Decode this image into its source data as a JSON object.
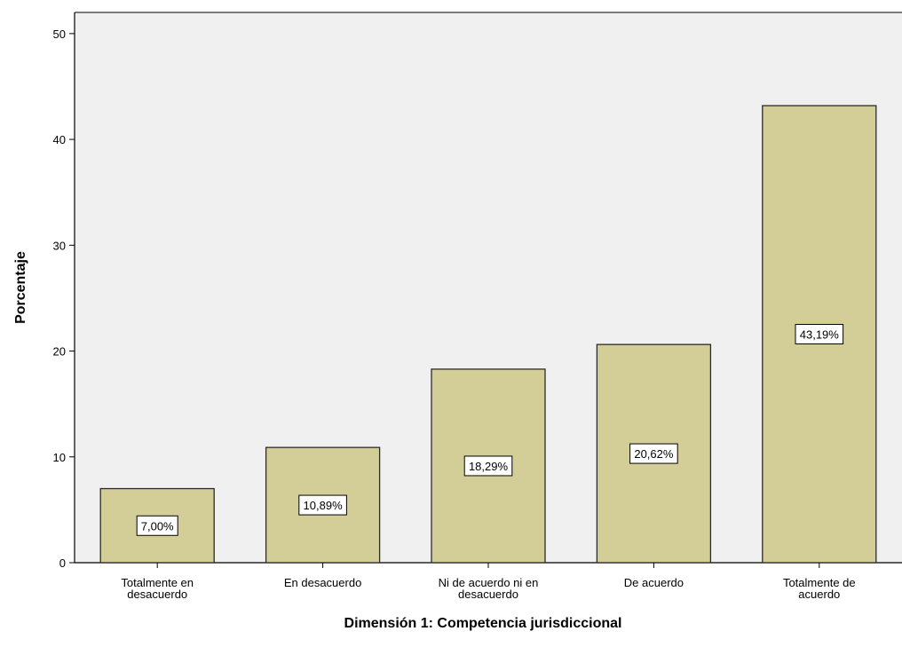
{
  "chart_data": {
    "type": "bar",
    "title": "",
    "xlabel": "Dimensión 1: Competencia jurisdiccional",
    "ylabel": "Porcentaje",
    "categories": [
      [
        "Totalmente en",
        "desacuerdo"
      ],
      [
        "En desacuerdo"
      ],
      [
        "Ni de acuerdo ni en",
        "desacuerdo"
      ],
      [
        "De acuerdo"
      ],
      [
        "Totalmente de",
        "acuerdo"
      ]
    ],
    "values": [
      7.0,
      10.89,
      18.29,
      20.62,
      43.19
    ],
    "data_labels": [
      "7,00%",
      "10,89%",
      "18,29%",
      "20,62%",
      "43,19%"
    ],
    "ylim": [
      0,
      52
    ],
    "yticks": [
      0,
      10,
      20,
      30,
      40,
      50
    ],
    "grid": false,
    "colors": {
      "plot_background": "#f0f0f0",
      "bar_fill": "#d3ce97",
      "bar_stroke": "#2b2b2b",
      "axis": "#000000",
      "label_box_fill": "#ffffff"
    }
  }
}
